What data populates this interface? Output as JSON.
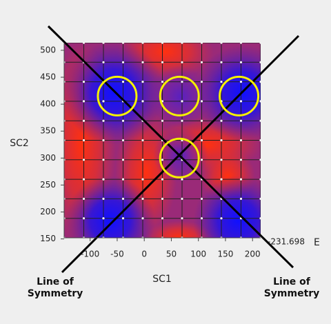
{
  "chart_data": {
    "type": "heatmap",
    "x_label": "SC1",
    "y_label": "SC2",
    "xlim": [
      -148,
      215
    ],
    "ylim": [
      152,
      514
    ],
    "xticks": [
      -100,
      -50,
      0,
      50,
      100,
      150,
      200
    ],
    "yticks": [
      150,
      200,
      250,
      300,
      350,
      400,
      450,
      500
    ],
    "colorbar_label": "E",
    "colorbar_value": -231.698,
    "circles": [
      {
        "x": -50,
        "y": 415
      },
      {
        "x": 65,
        "y": 415
      },
      {
        "x": 175,
        "y": 415
      },
      {
        "x": 65,
        "y": 300
      }
    ],
    "annotations": [
      "Line of Symmetry",
      "Line of Symmetry"
    ]
  }
}
